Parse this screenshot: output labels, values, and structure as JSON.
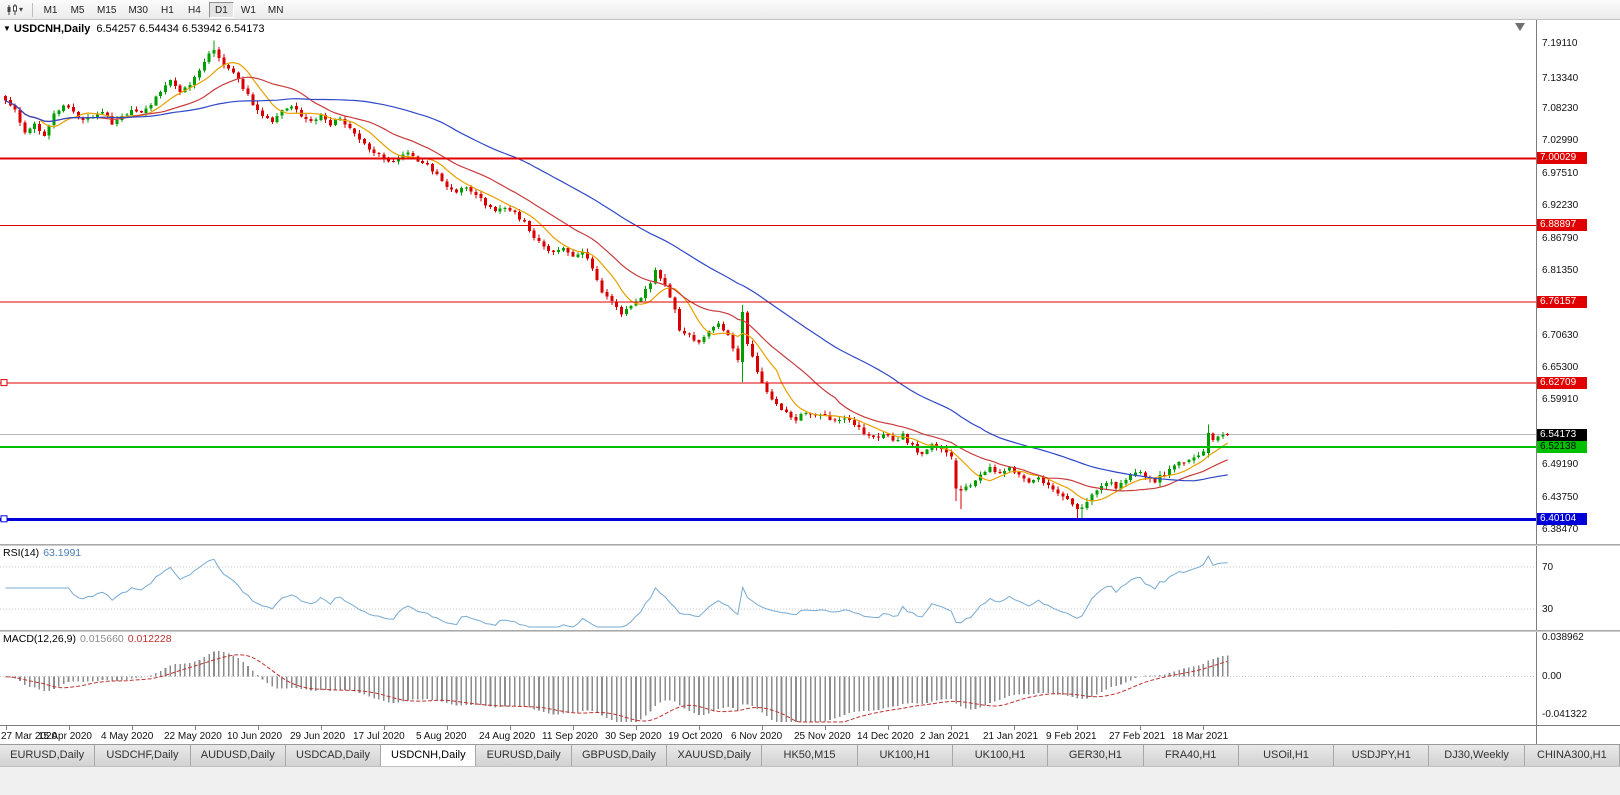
{
  "icons": {
    "expand_triangle": "▼",
    "dropdown_caret": "▾"
  },
  "toolbar": {
    "timeframes": [
      "M1",
      "M5",
      "M15",
      "M30",
      "H1",
      "H4",
      "D1",
      "W1",
      "MN"
    ],
    "active_timeframe": "D1"
  },
  "chart": {
    "symbol_label": "USDCNH,Daily",
    "ohlc_text": "6.54257 6.54434 6.53942 6.54173",
    "current_price": "6.54173",
    "y_axis_ticks": [
      "7.19110",
      "7.13340",
      "7.08230",
      "7.02990",
      "6.97510",
      "6.92230",
      "6.86790",
      "6.81350",
      "6.70630",
      "6.65300",
      "6.59910",
      "6.49190",
      "6.43750",
      "6.38470"
    ],
    "levels": [
      {
        "label": "7.00029",
        "value": 7.00029,
        "color": "#E00000",
        "width": 2,
        "selected": false,
        "text_color": "#ffffff"
      },
      {
        "label": "6.88897",
        "value": 6.88897,
        "color": "#E00000",
        "width": 1,
        "selected": false,
        "text_color": "#ffffff"
      },
      {
        "label": "6.76157",
        "value": 6.76157,
        "color": "#E00000",
        "width": 1,
        "selected": false,
        "text_color": "#ffffff"
      },
      {
        "label": "6.62709",
        "value": 6.62709,
        "color": "#E00000",
        "width": 1,
        "selected": true,
        "text_color": "#ffffff"
      },
      {
        "label": "6.52138",
        "value": 6.52138,
        "color": "#00C000",
        "width": 2,
        "selected": false,
        "text_color": "#000000"
      },
      {
        "label": "6.40104",
        "value": 6.40104,
        "color": "#0000D8",
        "width": 3,
        "selected": true,
        "text_color": "#ffffff"
      }
    ],
    "colors": {
      "candle_up": "#009E00",
      "candle_down": "#D80000",
      "ma_fast": "#E8A000",
      "ma_mid": "#C83C3C",
      "ma_slow": "#3048C8",
      "rsi": "#78AAD2",
      "macd_bars": "#8C8C8C",
      "macd_signal": "#C03232",
      "current_tag_bg": "#000000",
      "bid_line": "#B8B8B8"
    }
  },
  "rsi": {
    "label": "RSI(14)",
    "value": "63.1991",
    "period": 14,
    "levels": [
      70,
      30
    ],
    "axis_ticks": [
      "70",
      "30"
    ]
  },
  "macd": {
    "label": "MACD(12,26,9)",
    "value_main": "0.015660",
    "value_signal": "0.012228",
    "fast": 12,
    "slow": 26,
    "signal": 9,
    "axis_ticks": [
      "0.038962",
      "0.00",
      "-0.041322"
    ]
  },
  "time_axis": {
    "labels": [
      "27 Mar 2020",
      "15 Apr 2020",
      "4 May 2020",
      "22 May 2020",
      "10 Jun 2020",
      "29 Jun 2020",
      "17 Jul 2020",
      "5 Aug 2020",
      "24 Aug 2020",
      "11 Sep 2020",
      "30 Sep 2020",
      "19 Oct 2020",
      "6 Nov 2020",
      "25 Nov 2020",
      "14 Dec 2020",
      "2 Jan 2021",
      "21 Jan 2021",
      "9 Feb 2021",
      "27 Feb 2021",
      "18 Mar 2021"
    ],
    "bars_per_label": 13
  },
  "tabs": {
    "active_index": 4,
    "items": [
      "EURUSD,Daily",
      "USDCHF,Daily",
      "AUDUSD,Daily",
      "USDCAD,Daily",
      "USDCNH,Daily",
      "EURUSD,Daily",
      "GBPUSD,Daily",
      "XAUUSD,Daily",
      "HK50,M15",
      "UK100,H1",
      "UK100,H1",
      "GER30,H1",
      "FRA40,H1",
      "USOil,H1",
      "USDJPY,H1",
      "DJ30,Weekly",
      "CHINA300,H1"
    ]
  },
  "chart_data": {
    "type": "candlestick",
    "title": "USDCNH Daily",
    "timeframe": "D1",
    "bars_count": 253,
    "ylim": [
      6.36,
      7.23
    ],
    "x_labels": [
      "27 Mar 2020",
      "15 Apr 2020",
      "4 May 2020",
      "22 May 2020",
      "10 Jun 2020",
      "29 Jun 2020",
      "17 Jul 2020",
      "5 Aug 2020",
      "24 Aug 2020",
      "11 Sep 2020",
      "30 Sep 2020",
      "19 Oct 2020",
      "6 Nov 2020",
      "25 Nov 2020",
      "14 Dec 2020",
      "2 Jan 2021",
      "21 Jan 2021",
      "9 Feb 2021",
      "27 Feb 2021",
      "18 Mar 2021"
    ],
    "close_anchors": [
      [
        0,
        7.098
      ],
      [
        2,
        7.078
      ],
      [
        4,
        7.042
      ],
      [
        6,
        7.055
      ],
      [
        8,
        7.035
      ],
      [
        10,
        7.072
      ],
      [
        12,
        7.088
      ],
      [
        14,
        7.078
      ],
      [
        16,
        7.062
      ],
      [
        18,
        7.07
      ],
      [
        20,
        7.078
      ],
      [
        22,
        7.06
      ],
      [
        24,
        7.068
      ],
      [
        26,
        7.082
      ],
      [
        28,
        7.076
      ],
      [
        30,
        7.092
      ],
      [
        32,
        7.11
      ],
      [
        34,
        7.128
      ],
      [
        36,
        7.112
      ],
      [
        38,
        7.125
      ],
      [
        40,
        7.148
      ],
      [
        42,
        7.172
      ],
      [
        43,
        7.178
      ],
      [
        45,
        7.158
      ],
      [
        47,
        7.142
      ],
      [
        49,
        7.118
      ],
      [
        51,
        7.092
      ],
      [
        53,
        7.072
      ],
      [
        55,
        7.062
      ],
      [
        57,
        7.08
      ],
      [
        59,
        7.088
      ],
      [
        61,
        7.072
      ],
      [
        63,
        7.062
      ],
      [
        65,
        7.07
      ],
      [
        67,
        7.058
      ],
      [
        69,
        7.065
      ],
      [
        71,
        7.048
      ],
      [
        73,
        7.032
      ],
      [
        75,
        7.018
      ],
      [
        77,
        7.005
      ],
      [
        79,
        6.992
      ],
      [
        81,
        7.002
      ],
      [
        83,
        7.008
      ],
      [
        85,
        6.996
      ],
      [
        87,
        6.988
      ],
      [
        89,
        6.972
      ],
      [
        91,
        6.955
      ],
      [
        93,
        6.945
      ],
      [
        95,
        6.952
      ],
      [
        97,
        6.938
      ],
      [
        99,
        6.925
      ],
      [
        101,
        6.915
      ],
      [
        103,
        6.92
      ],
      [
        105,
        6.908
      ],
      [
        107,
        6.892
      ],
      [
        109,
        6.868
      ],
      [
        111,
        6.852
      ],
      [
        113,
        6.842
      ],
      [
        115,
        6.848
      ],
      [
        117,
        6.838
      ],
      [
        119,
        6.846
      ],
      [
        121,
        6.815
      ],
      [
        123,
        6.778
      ],
      [
        125,
        6.76
      ],
      [
        127,
        6.744
      ],
      [
        129,
        6.756
      ],
      [
        131,
        6.772
      ],
      [
        133,
        6.796
      ],
      [
        134,
        6.812
      ],
      [
        136,
        6.79
      ],
      [
        138,
        6.752
      ],
      [
        139,
        6.718
      ],
      [
        141,
        6.705
      ],
      [
        143,
        6.696
      ],
      [
        145,
        6.71
      ],
      [
        147,
        6.725
      ],
      [
        149,
        6.705
      ],
      [
        151,
        6.668
      ],
      [
        152,
        6.745
      ],
      [
        153,
        6.692
      ],
      [
        155,
        6.645
      ],
      [
        157,
        6.612
      ],
      [
        159,
        6.592
      ],
      [
        161,
        6.578
      ],
      [
        163,
        6.568
      ],
      [
        165,
        6.578
      ],
      [
        167,
        6.572
      ],
      [
        169,
        6.576
      ],
      [
        171,
        6.562
      ],
      [
        173,
        6.57
      ],
      [
        175,
        6.556
      ],
      [
        177,
        6.545
      ],
      [
        179,
        6.535
      ],
      [
        181,
        6.542
      ],
      [
        183,
        6.532
      ],
      [
        185,
        6.54
      ],
      [
        187,
        6.522
      ],
      [
        189,
        6.508
      ],
      [
        191,
        6.525
      ],
      [
        193,
        6.515
      ],
      [
        195,
        6.502
      ],
      [
        196,
        6.452
      ],
      [
        197,
        6.448
      ],
      [
        199,
        6.458
      ],
      [
        201,
        6.475
      ],
      [
        203,
        6.488
      ],
      [
        205,
        6.478
      ],
      [
        207,
        6.485
      ],
      [
        209,
        6.472
      ],
      [
        211,
        6.465
      ],
      [
        213,
        6.47
      ],
      [
        215,
        6.458
      ],
      [
        217,
        6.445
      ],
      [
        219,
        6.432
      ],
      [
        221,
        6.415
      ],
      [
        223,
        6.428
      ],
      [
        225,
        6.452
      ],
      [
        227,
        6.465
      ],
      [
        229,
        6.455
      ],
      [
        231,
        6.468
      ],
      [
        233,
        6.482
      ],
      [
        235,
        6.472
      ],
      [
        237,
        6.465
      ],
      [
        239,
        6.478
      ],
      [
        241,
        6.492
      ],
      [
        243,
        6.498
      ],
      [
        245,
        6.505
      ],
      [
        247,
        6.512
      ],
      [
        248,
        6.544
      ],
      [
        249,
        6.532
      ],
      [
        250,
        6.536
      ],
      [
        251,
        6.54
      ],
      [
        252,
        6.5417
      ]
    ],
    "special_bars": [
      {
        "i": 43,
        "h": 7.1962
      },
      {
        "i": 152,
        "o": 6.662,
        "h": 6.757,
        "l": 6.629,
        "c": 6.745
      },
      {
        "i": 196,
        "o": 6.499,
        "h": 6.503,
        "l": 6.431,
        "c": 6.452
      },
      {
        "i": 197,
        "l": 6.418
      },
      {
        "i": 221,
        "l": 6.4015
      },
      {
        "i": 222,
        "l": 6.403
      },
      {
        "i": 248,
        "o": 6.511,
        "h": 6.558,
        "l": 6.504,
        "c": 6.544
      },
      {
        "i": 252,
        "o": 6.54257,
        "h": 6.54434,
        "l": 6.53942,
        "c": 6.54173
      }
    ],
    "levels": {
      "resistance_red": [
        7.00029,
        6.88897,
        6.76157,
        6.62709
      ],
      "support_green": 6.52138,
      "support_blue": 6.40104
    },
    "last_bar": {
      "open": 6.54257,
      "high": 6.54434,
      "low": 6.53942,
      "close": 6.54173
    },
    "indicators": {
      "moving_averages": [
        {
          "period": 8,
          "color": "#E8A000"
        },
        {
          "period": 20,
          "color": "#C83C3C"
        },
        {
          "period": 50,
          "color": "#3048C8"
        }
      ],
      "rsi": {
        "period": 14,
        "last": 63.1991,
        "levels": [
          70,
          30
        ]
      },
      "macd": {
        "fast": 12,
        "slow": 26,
        "signal": 9,
        "last_main": 0.01566,
        "last_signal": 0.012228,
        "axis_max": 0.038962,
        "axis_min": -0.041322
      }
    }
  }
}
